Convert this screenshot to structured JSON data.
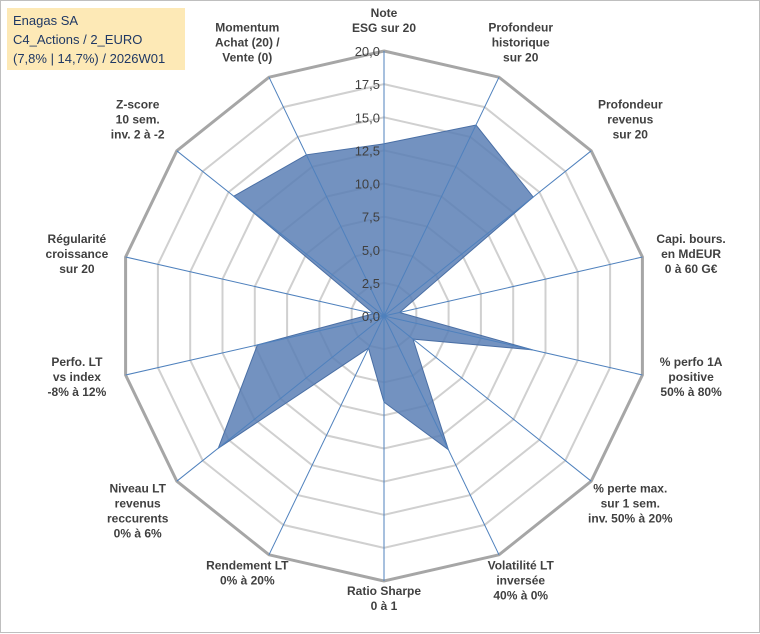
{
  "title": {
    "line1": "Enagas SA",
    "line2": "C4_Actions / 2_EURO",
    "line3": "(7,8% | 14,7%) / 2026W01"
  },
  "chart_data": {
    "type": "radar",
    "title": "Enagas SA",
    "rlim": [
      0,
      20
    ],
    "ticks": [
      "0,0",
      "2,5",
      "5,0",
      "7,5",
      "10,0",
      "12,5",
      "15,0",
      "17,5",
      "20,0"
    ],
    "tick_values": [
      0,
      2.5,
      5,
      7.5,
      10,
      12.5,
      15,
      17.5,
      20
    ],
    "axes": [
      {
        "label": [
          "Note",
          "ESG sur 20"
        ]
      },
      {
        "label": [
          "Profondeur",
          "historique",
          "sur 20"
        ]
      },
      {
        "label": [
          "Profondeur",
          "revenus",
          "sur 20"
        ]
      },
      {
        "label": [
          "Capi. bours.",
          "en MdEUR",
          "0 à 60 G€"
        ]
      },
      {
        "label": [
          "% perfo 1A",
          "positive",
          "50% à 80%"
        ]
      },
      {
        "label": [
          "% perte max.",
          "sur 1 sem.",
          "inv. 50% à 20%"
        ]
      },
      {
        "label": [
          "Volatilité LT",
          "inversée",
          "40% à 0%"
        ]
      },
      {
        "label": [
          "Ratio Sharpe",
          "0 à 1"
        ]
      },
      {
        "label": [
          "Rendement LT",
          "0% à 20%"
        ]
      },
      {
        "label": [
          "Niveau LT",
          "revenus",
          "reccurents",
          "0% à 6%"
        ]
      },
      {
        "label": [
          "Perfo. LT",
          "vs index",
          "-8% à 12%"
        ]
      },
      {
        "label": [
          "Régularité",
          "croissance",
          "sur 20"
        ]
      },
      {
        "label": [
          "Z-score",
          "10 sem.",
          "inv. 2 à -2"
        ]
      },
      {
        "label": [
          "Momentum",
          "Achat (20) /",
          "Vente (0)"
        ]
      }
    ],
    "series": [
      {
        "name": "Enagas SA",
        "color": "#5b7fb5",
        "values": [
          13.0,
          16.0,
          14.4,
          1.2,
          11.5,
          2.8,
          11.2,
          6.5,
          2.7,
          16.0,
          9.8,
          0.8,
          14.5,
          13.5
        ]
      }
    ],
    "grid_color": "#d0d0d0",
    "outer_color": "#a6a6a6",
    "spoke_color": "#4f81bd"
  }
}
